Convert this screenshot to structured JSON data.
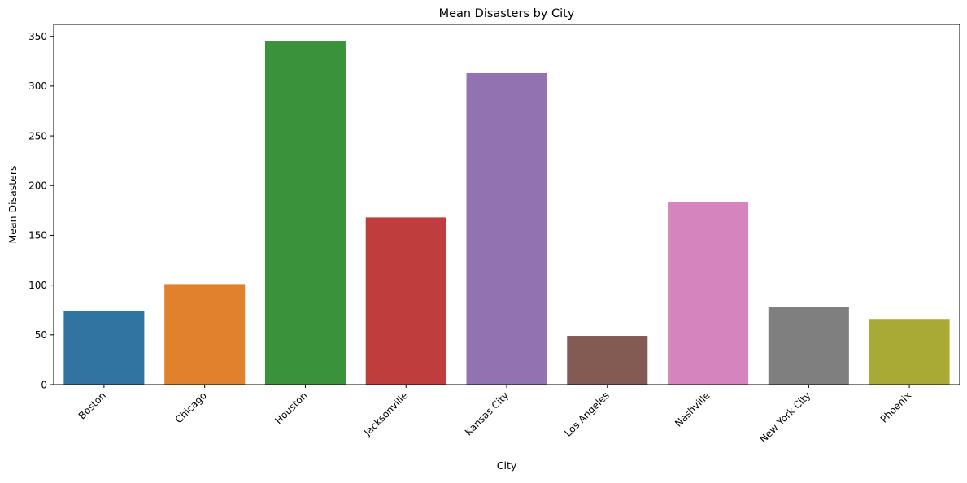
{
  "chart_data": {
    "type": "bar",
    "title": "Mean Disasters by City",
    "xlabel": "City",
    "ylabel": "Mean Disasters",
    "categories": [
      "Boston",
      "Chicago",
      "Houston",
      "Jacksonville",
      "Kansas City",
      "Los Angeles",
      "Nashville",
      "New York City",
      "Phoenix"
    ],
    "values": [
      74,
      101,
      345,
      168,
      313,
      49,
      183,
      78,
      66
    ],
    "colors": [
      "#3274a1",
      "#e1812c",
      "#3a923a",
      "#c03d3e",
      "#9372b2",
      "#845b53",
      "#d684bd",
      "#7f7f7f",
      "#a9aa35"
    ],
    "ylim": [
      0,
      362
    ],
    "yticks": [
      0,
      50,
      100,
      150,
      200,
      250,
      300,
      350
    ],
    "xtick_rotation": 45,
    "grid": false,
    "legend": "none"
  }
}
